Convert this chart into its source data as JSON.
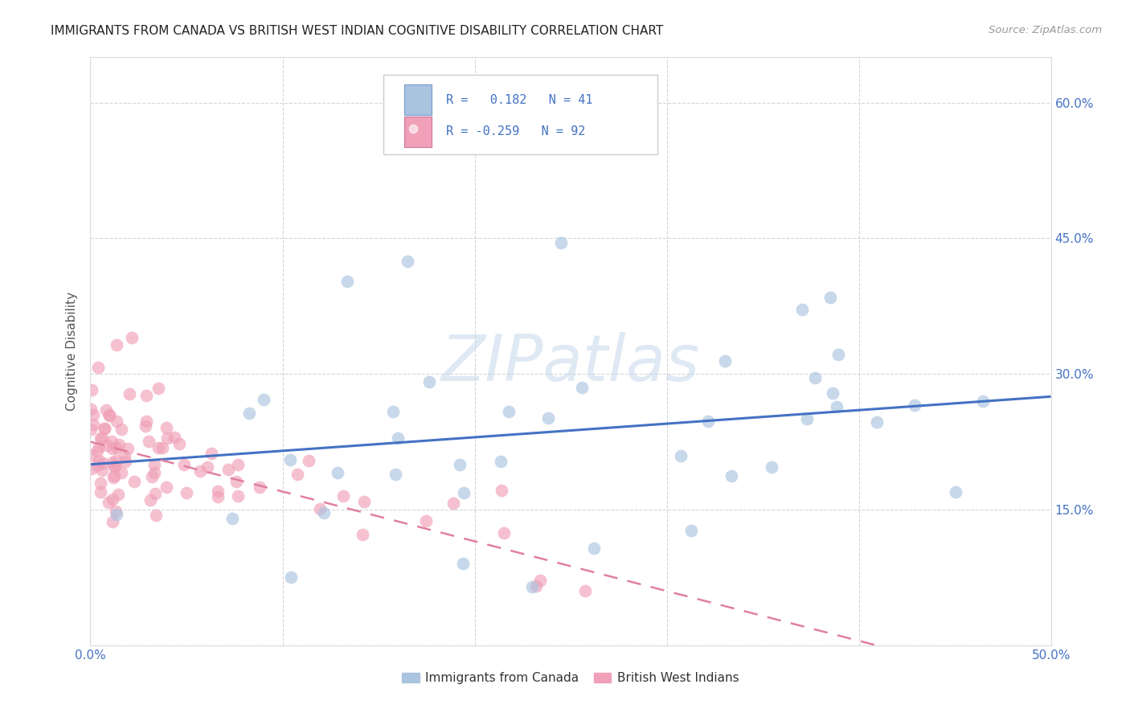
{
  "title": "IMMIGRANTS FROM CANADA VS BRITISH WEST INDIAN COGNITIVE DISABILITY CORRELATION CHART",
  "source": "Source: ZipAtlas.com",
  "ylabel": "Cognitive Disability",
  "xlim": [
    0.0,
    0.5
  ],
  "ylim": [
    0.0,
    0.65
  ],
  "xticks": [
    0.0,
    0.1,
    0.2,
    0.3,
    0.4,
    0.5
  ],
  "yticks": [
    0.0,
    0.15,
    0.3,
    0.45,
    0.6
  ],
  "canada_R": 0.182,
  "canada_N": 41,
  "bwi_R": -0.259,
  "bwi_N": 92,
  "canada_color": "#aac4e0",
  "bwi_color": "#f0a0b8",
  "canada_line_color": "#4472c4",
  "bwi_line_color": "#e080a0",
  "background_color": "#ffffff",
  "grid_color": "#cccccc",
  "watermark": "ZIPatlas",
  "axis_color": "#4472c4",
  "title_color": "#222222",
  "source_color": "#999999"
}
